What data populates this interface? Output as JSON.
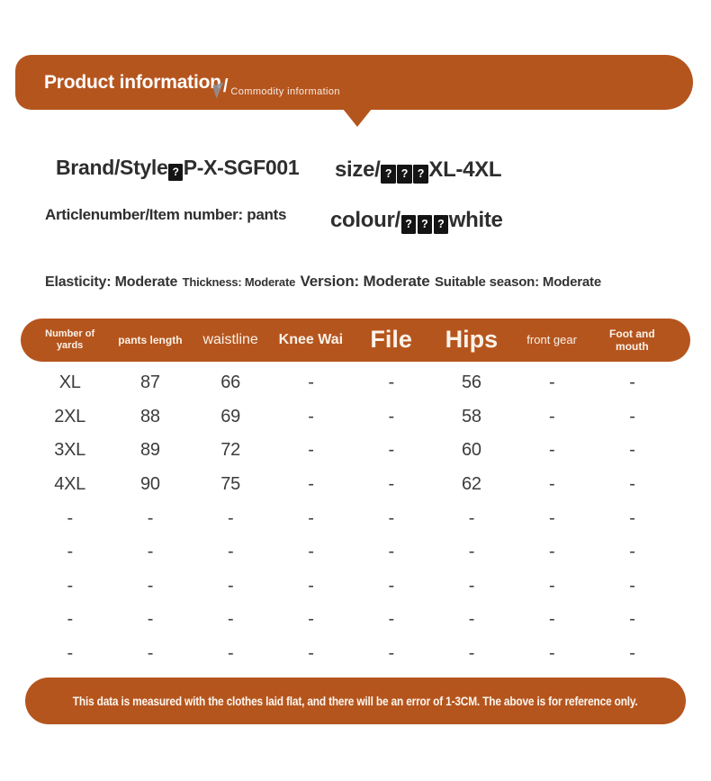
{
  "colors": {
    "accent": "#b5551e",
    "page_background": "#ffffff",
    "text": "#2e2e2e",
    "header_text": "#faf2e8",
    "missing_glyph_background": "#141414"
  },
  "top_banner": {
    "title": "Product information",
    "divider": "/",
    "subtitle": "Commodity information"
  },
  "glyphs": {
    "missing": "?"
  },
  "product_info": {
    "brand_label": "Brand/Style",
    "brand_value": "P-X-SGF001",
    "article_line": "Articlenumber/Item number: pants",
    "size_label": "size/",
    "size_value": "XL-4XL",
    "colour_label": "colour/",
    "colour_value": "white"
  },
  "attributes": [
    "Elasticity: Moderate",
    "Thickness: Moderate",
    "Version: Moderate",
    "Suitable season: Moderate"
  ],
  "size_table": {
    "headers": [
      "Number of\nyards",
      "pants length",
      "waistline",
      "Knee Wai",
      "File",
      "Hips",
      "front gear",
      "Foot and\nmouth"
    ],
    "rows": [
      [
        "XL",
        "87",
        "66",
        "-",
        "-",
        "56",
        "-",
        "-"
      ],
      [
        "2XL",
        "88",
        "69",
        "-",
        "-",
        "58",
        "-",
        "-"
      ],
      [
        "3XL",
        "89",
        "72",
        "-",
        "-",
        "60",
        "-",
        "-"
      ],
      [
        "4XL",
        "90",
        "75",
        "-",
        "-",
        "62",
        "-",
        "-"
      ],
      [
        "-",
        "-",
        "-",
        "-",
        "-",
        "-",
        "-",
        "-"
      ],
      [
        "-",
        "-",
        "-",
        "-",
        "-",
        "-",
        "-",
        "-"
      ],
      [
        "-",
        "-",
        "-",
        "-",
        "-",
        "-",
        "-",
        "-"
      ],
      [
        "-",
        "-",
        "-",
        "-",
        "-",
        "-",
        "-",
        "-"
      ],
      [
        "-",
        "-",
        "-",
        "-",
        "-",
        "-",
        "-",
        "-"
      ]
    ]
  },
  "footer": {
    "disclaimer": "This data is measured with the clothes laid flat, and there will be an error of 1-3CM. The above is for reference only."
  }
}
